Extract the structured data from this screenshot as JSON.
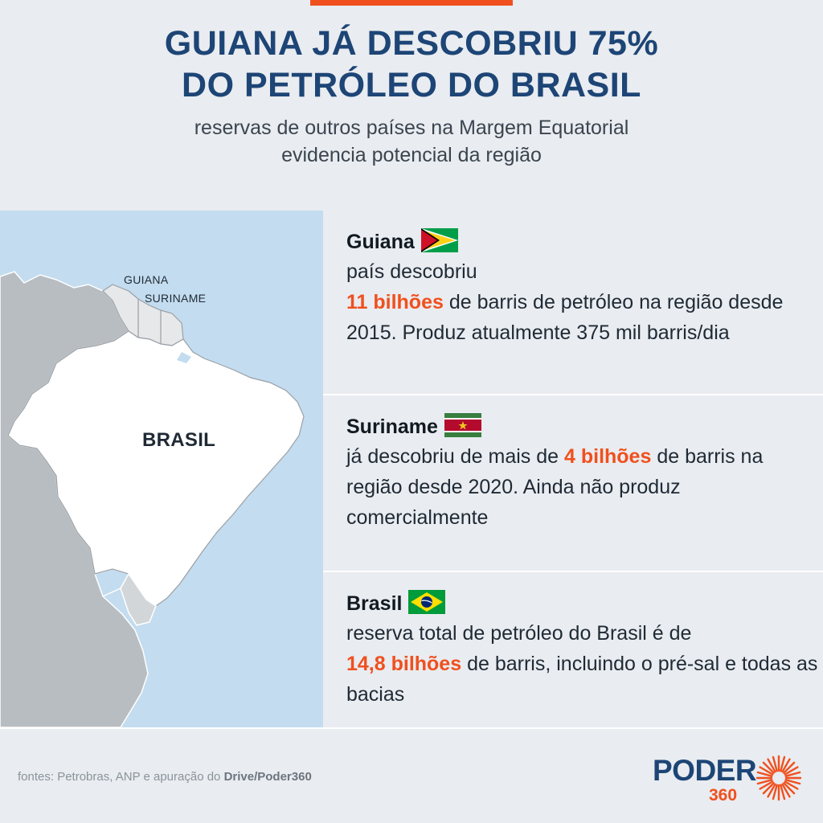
{
  "header": {
    "title_line1": "GUIANA JÁ DESCOBRIU 75%",
    "title_line2": "DO PETRÓLEO DO BRASIL",
    "subtitle_line1": "reservas de outros países na Margem Equatorial",
    "subtitle_line2": "evidencia potencial da região"
  },
  "map": {
    "label_guiana": "GUIANA",
    "label_suriname": "SURINAME",
    "label_brasil": "BRASIL"
  },
  "countries": [
    {
      "name": "Guiana",
      "flag": "guyana-flag",
      "text_before": "país descobriu",
      "highlight": "11 bilhões",
      "text_after": "de barris de petróleo na região desde 2015. Produz atualmente 375 mil barris/dia"
    },
    {
      "name": "Suriname",
      "flag": "suriname-flag",
      "text_before": "já descobriu de mais de",
      "highlight": "4 bilhões",
      "text_after": "de barris na região desde 2020. Ainda não produz comercialmente"
    },
    {
      "name": "Brasil",
      "flag": "brazil-flag",
      "text_before": "reserva total de petróleo do Brasil é de",
      "highlight": "14,8 bilhões",
      "text_after": "de barris, incluindo o pré-sal e todas as bacias"
    }
  ],
  "footer": {
    "source_prefix": "fontes: Petrobras, ANP e apuração do",
    "source_bold": "Drive/Poder360"
  },
  "logo": {
    "word": "PODER",
    "number": "360"
  },
  "colors": {
    "accent": "#f0501e",
    "title_blue": "#1d4576",
    "ocean": "#c3dcef",
    "background": "#e9ecf0"
  }
}
